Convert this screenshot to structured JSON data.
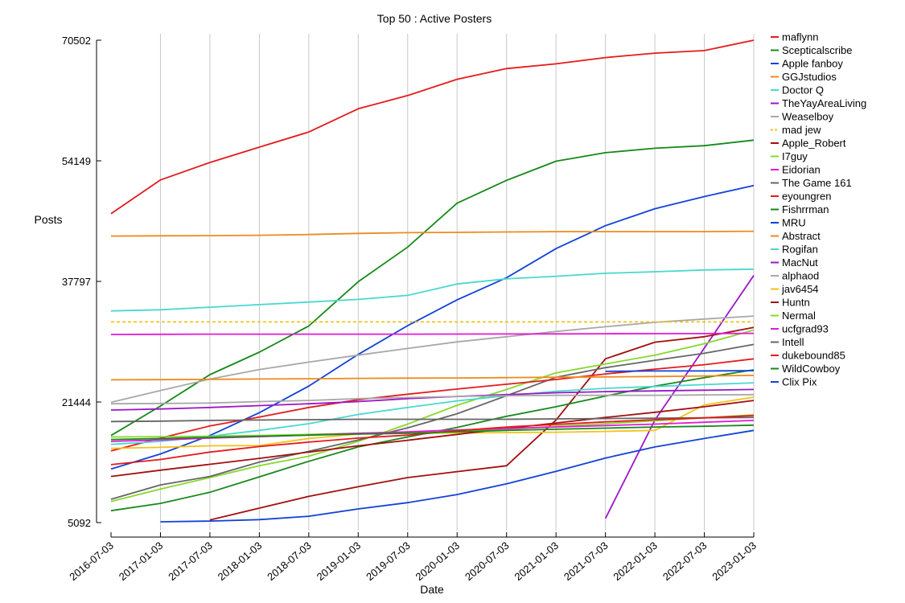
{
  "chart_data": {
    "type": "line",
    "title": "Top 50 : Active Posters",
    "xlabel": "Date",
    "ylabel": "Posts",
    "x": [
      "2016-07-03",
      "2017-01-03",
      "2017-07-03",
      "2018-01-03",
      "2018-07-03",
      "2019-01-03",
      "2019-07-03",
      "2020-01-03",
      "2020-07-03",
      "2021-01-03",
      "2021-07-03",
      "2022-01-03",
      "2022-07-03",
      "2023-01-03"
    ],
    "x_tick_labels": [
      "2016-07-03",
      "2017-01-03",
      "2017-07-03",
      "2018-01-03",
      "2018-07-03",
      "2019-01-03",
      "2019-07-03",
      "2020-01-03",
      "2020-07-03",
      "2021-01-03",
      "2021-07-03",
      "2022-01-03",
      "2022-07-03",
      "2023-01-03"
    ],
    "y_ticks": [
      5092,
      21444,
      37797,
      54149,
      70502
    ],
    "ylim": [
      5092,
      70502
    ],
    "grid": {
      "vertical": true,
      "horizontal": false
    },
    "legend_position": "right",
    "series": [
      {
        "name": "maflynn",
        "color": "#e41a1c",
        "dash": false,
        "values": [
          46980,
          51550,
          53920,
          56000,
          58050,
          61200,
          63000,
          65200,
          66650,
          67300,
          68150,
          68750,
          69100,
          70502
        ]
      },
      {
        "name": "Scepticalscribe",
        "color": "#16891b",
        "dash": false,
        "values": [
          16900,
          20900,
          25150,
          28200,
          31750,
          37750,
          42450,
          48400,
          51500,
          54100,
          55250,
          55850,
          56200,
          56950
        ]
      },
      {
        "name": "Apple fanboy",
        "color": "#1242d6",
        "dash": false,
        "values": [
          12350,
          14400,
          16900,
          20000,
          23600,
          27900,
          31800,
          35300,
          38300,
          42250,
          45350,
          47650,
          49300,
          50800
        ]
      },
      {
        "name": "GGJstudios",
        "color": "#ee8a1c",
        "dash": false,
        "values": [
          43950,
          43980,
          44000,
          44050,
          44150,
          44300,
          44400,
          44450,
          44500,
          44550,
          44550,
          44550,
          44550,
          44600
        ]
      },
      {
        "name": "Doctor Q",
        "color": "#48d8d0",
        "dash": false,
        "values": [
          33800,
          33950,
          34300,
          34650,
          35000,
          35350,
          35900,
          37450,
          38150,
          38500,
          38900,
          39100,
          39350,
          39450
        ]
      },
      {
        "name": "TheYayAreaLiving",
        "color": "#9b16c8",
        "dash": null,
        "values": [
          null,
          null,
          null,
          null,
          null,
          null,
          null,
          null,
          null,
          null,
          5650,
          19000,
          28750,
          38600
        ]
      },
      {
        "name": "Weaselboy",
        "color": "#a8a8a8",
        "dash": false,
        "values": [
          21400,
          23000,
          24550,
          25850,
          26850,
          27800,
          28700,
          29600,
          30300,
          31000,
          31650,
          32250,
          32700,
          33100
        ]
      },
      {
        "name": "mad jew",
        "color": "#f2c21a",
        "dash": true,
        "values": [
          32300,
          32300,
          32300,
          32300,
          32300,
          32300,
          32300,
          32300,
          32300,
          32300,
          32300,
          32300,
          32300,
          32300
        ]
      },
      {
        "name": "Apple_Robert",
        "color": "#a30f0f",
        "dash": false,
        "values": [
          null,
          null,
          5450,
          7050,
          8650,
          9950,
          11200,
          12000,
          12800,
          19000,
          27300,
          29550,
          30300,
          31550
        ]
      },
      {
        "name": "I7guy",
        "color": "#86d82c",
        "dash": false,
        "values": [
          7950,
          9650,
          11200,
          12800,
          14100,
          16100,
          18450,
          21000,
          23150,
          25400,
          26600,
          27800,
          29350,
          31200
        ]
      },
      {
        "name": "Eidorian",
        "color": "#e418d8",
        "dash": false,
        "values": [
          30600,
          30620,
          30650,
          30650,
          30650,
          30650,
          30650,
          30660,
          30670,
          30680,
          30700,
          30710,
          30720,
          30750
        ]
      },
      {
        "name": "The Game 161",
        "color": "#656565",
        "dash": false,
        "values": [
          8250,
          10200,
          11350,
          13300,
          14750,
          16300,
          17950,
          19850,
          22300,
          24800,
          26100,
          27100,
          28050,
          29250
        ]
      },
      {
        "name": "eyoungren",
        "color": "#e41a1c",
        "dash": false,
        "values": [
          14800,
          16550,
          18200,
          19400,
          20700,
          21750,
          22500,
          23200,
          23850,
          24500,
          25250,
          25900,
          26500,
          27300
        ]
      },
      {
        "name": "Fishrrman",
        "color": "#16891b",
        "dash": false,
        "values": [
          6700,
          7700,
          9200,
          11300,
          13400,
          15350,
          16700,
          18000,
          19500,
          20800,
          22250,
          23600,
          24750,
          25800
        ]
      },
      {
        "name": "MRU",
        "color": "#1242d6",
        "dash": false,
        "values": [
          null,
          null,
          null,
          null,
          null,
          null,
          null,
          null,
          null,
          null,
          25600,
          25650,
          25650,
          25700
        ]
      },
      {
        "name": "Abstract",
        "color": "#ee8a1c",
        "dash": false,
        "values": [
          24450,
          24480,
          24520,
          24560,
          24600,
          24650,
          24680,
          24700,
          24750,
          24800,
          24850,
          24900,
          24980,
          25050
        ]
      },
      {
        "name": "Rogifan",
        "color": "#48d8d0",
        "dash": false,
        "values": [
          15700,
          16100,
          16800,
          17600,
          18500,
          19750,
          20700,
          21600,
          22300,
          22900,
          23300,
          23550,
          23800,
          24050
        ]
      },
      {
        "name": "MacNut",
        "color": "#9b16c8",
        "dash": false,
        "values": [
          20350,
          20500,
          20700,
          20950,
          21200,
          21500,
          21900,
          22200,
          22450,
          22700,
          22850,
          22950,
          23050,
          23150
        ]
      },
      {
        "name": "alphaod",
        "color": "#a8a8a8",
        "dash": false,
        "values": [
          21200,
          21250,
          21300,
          21500,
          21650,
          21900,
          22050,
          22200,
          22300,
          22350,
          22350,
          22350,
          22400,
          22450
        ]
      },
      {
        "name": "jav6454",
        "color": "#f2c21a",
        "dash": false,
        "values": [
          15150,
          15300,
          15500,
          15550,
          16500,
          17100,
          17200,
          17250,
          17300,
          17350,
          17450,
          17600,
          21050,
          22100
        ]
      },
      {
        "name": "Huntn",
        "color": "#a30f0f",
        "dash": false,
        "values": [
          11350,
          12200,
          13000,
          13800,
          14650,
          15500,
          16250,
          17050,
          17850,
          18600,
          19350,
          20050,
          20800,
          21650
        ]
      },
      {
        "name": "Nermal",
        "color": "#86d82c",
        "dash": false,
        "values": [
          16700,
          16750,
          16800,
          16900,
          17050,
          17200,
          17350,
          17500,
          17750,
          18150,
          18500,
          18900,
          19300,
          19700
        ]
      },
      {
        "name": "ucfgrad93",
        "color": "#e418d8",
        "dash": false,
        "values": [
          16100,
          16300,
          16550,
          16750,
          16950,
          17200,
          17400,
          17650,
          17850,
          18050,
          18250,
          18450,
          18700,
          18950
        ]
      },
      {
        "name": "Intell",
        "color": "#656565",
        "dash": false,
        "values": [
          18800,
          18850,
          18950,
          19000,
          19050,
          19100,
          19100,
          19100,
          19100,
          19150,
          19200,
          19250,
          19300,
          19350
        ]
      },
      {
        "name": "dukebound85",
        "color": "#e41a1c",
        "dash": false,
        "values": [
          12950,
          13650,
          14650,
          15400,
          16000,
          16550,
          16950,
          17550,
          18050,
          18400,
          18750,
          19050,
          19300,
          19600
        ]
      },
      {
        "name": "WildCowboy",
        "color": "#16891b",
        "dash": false,
        "values": [
          16350,
          16500,
          16650,
          16800,
          16950,
          17100,
          17200,
          17400,
          17600,
          17750,
          17900,
          18050,
          18150,
          18300
        ]
      },
      {
        "name": "Clix Pix",
        "color": "#1242d6",
        "dash": false,
        "values": [
          null,
          5200,
          5300,
          5500,
          5950,
          6950,
          7800,
          8900,
          10350,
          12050,
          13850,
          15350,
          16500,
          17600
        ]
      }
    ]
  }
}
